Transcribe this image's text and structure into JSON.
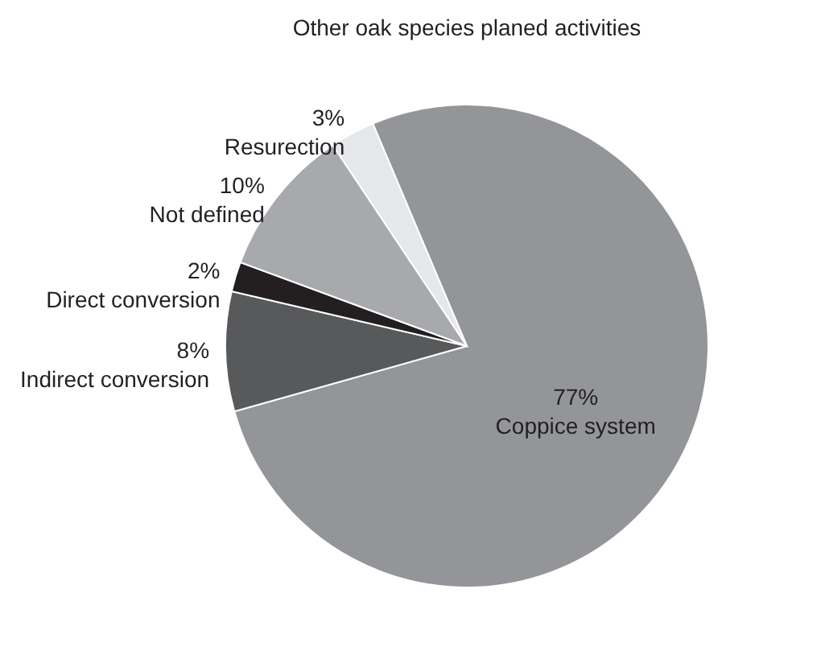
{
  "chart_data": {
    "type": "pie",
    "title": "Other oak species planed activities",
    "categories": [
      "Coppice system",
      "Indirect conversion",
      "Direct conversion",
      "Not defined",
      "Resurection"
    ],
    "values": [
      77,
      8,
      2,
      10,
      3
    ],
    "value_labels": [
      "77%",
      "8%",
      "2%",
      "10%",
      "3%"
    ],
    "colors": [
      "#939598",
      "#58595b",
      "#231f20",
      "#a7a9ac",
      "#e6e7e8"
    ]
  }
}
